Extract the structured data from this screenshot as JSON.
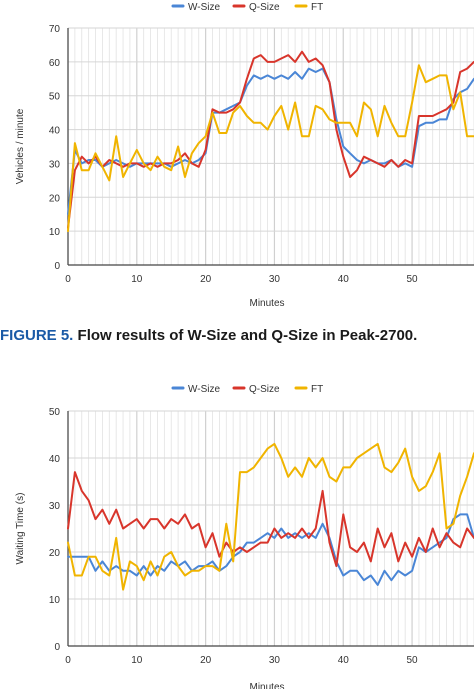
{
  "figure_caption": {
    "label": "FIGURE 5.",
    "text": " Flow results of W-Size and Q-Size in Peak-2700."
  },
  "colors": {
    "w_size": "#4a86d6",
    "q_size": "#d8352b",
    "ft": "#f0b400",
    "grid": "#e2e2e2",
    "axis": "#333333"
  },
  "chart_data": [
    {
      "type": "line",
      "title": "",
      "xlabel": "Minutes",
      "ylabel": "Vehicles / minute",
      "xlim": [
        0,
        59
      ],
      "ylim": [
        0,
        70
      ],
      "xticks": [
        0,
        10,
        20,
        30,
        40,
        50
      ],
      "yticks": [
        0,
        10,
        20,
        30,
        40,
        50,
        60,
        70
      ],
      "grid": true,
      "legend_position": "top",
      "series": [
        {
          "name": "W-Size",
          "color": "#4a86d6",
          "x": [
            0,
            1,
            2,
            3,
            4,
            5,
            6,
            7,
            8,
            9,
            10,
            11,
            12,
            13,
            14,
            15,
            16,
            17,
            18,
            19,
            20,
            21,
            22,
            23,
            24,
            25,
            26,
            27,
            28,
            29,
            30,
            31,
            32,
            33,
            34,
            35,
            36,
            37,
            38,
            39,
            40,
            41,
            42,
            43,
            44,
            45,
            46,
            47,
            48,
            49,
            50,
            51,
            52,
            53,
            54,
            55,
            56,
            57,
            58,
            59
          ],
          "y": [
            15,
            34,
            30,
            31,
            31,
            29,
            30,
            31,
            30,
            29,
            30,
            30,
            30,
            30,
            30,
            29,
            30,
            31,
            30,
            31,
            33,
            45,
            45,
            46,
            47,
            48,
            53,
            56,
            55,
            56,
            55,
            56,
            55,
            57,
            55,
            58,
            57,
            58,
            54,
            43,
            35,
            33,
            31,
            30,
            31,
            30,
            30,
            31,
            29,
            30,
            29,
            41,
            42,
            42,
            43,
            43,
            49,
            51,
            52,
            55
          ]
        },
        {
          "name": "Q-Size",
          "color": "#d8352b",
          "x": [
            0,
            1,
            2,
            3,
            4,
            5,
            6,
            7,
            8,
            9,
            10,
            11,
            12,
            13,
            14,
            15,
            16,
            17,
            18,
            19,
            20,
            21,
            22,
            23,
            24,
            25,
            26,
            27,
            28,
            29,
            30,
            31,
            32,
            33,
            34,
            35,
            36,
            37,
            38,
            39,
            40,
            41,
            42,
            43,
            44,
            45,
            46,
            47,
            48,
            49,
            50,
            51,
            52,
            53,
            54,
            55,
            56,
            57,
            58,
            59
          ],
          "y": [
            11,
            28,
            32,
            30,
            32,
            29,
            31,
            30,
            29,
            30,
            30,
            29,
            30,
            29,
            30,
            30,
            31,
            33,
            30,
            29,
            34,
            46,
            45,
            45,
            46,
            48,
            55,
            61,
            62,
            60,
            60,
            61,
            62,
            60,
            63,
            60,
            61,
            59,
            54,
            40,
            32,
            26,
            28,
            32,
            31,
            30,
            29,
            31,
            29,
            31,
            30,
            44,
            44,
            44,
            45,
            46,
            48,
            57,
            58,
            60
          ]
        },
        {
          "name": "FT",
          "color": "#f0b400",
          "x": [
            0,
            1,
            2,
            3,
            4,
            5,
            6,
            7,
            8,
            9,
            10,
            11,
            12,
            13,
            14,
            15,
            16,
            17,
            18,
            19,
            20,
            21,
            22,
            23,
            24,
            25,
            26,
            27,
            28,
            29,
            30,
            31,
            32,
            33,
            34,
            35,
            36,
            37,
            38,
            39,
            40,
            41,
            42,
            43,
            44,
            45,
            46,
            47,
            48,
            49,
            50,
            51,
            52,
            53,
            54,
            55,
            56,
            57,
            58,
            59
          ],
          "y": [
            10,
            36,
            28,
            28,
            33,
            29,
            25,
            38,
            26,
            30,
            34,
            30,
            28,
            32,
            29,
            28,
            35,
            26,
            33,
            36,
            38,
            45,
            39,
            39,
            45,
            47,
            44,
            42,
            42,
            40,
            44,
            47,
            40,
            48,
            38,
            38,
            47,
            46,
            43,
            42,
            42,
            42,
            38,
            48,
            46,
            38,
            47,
            42,
            38,
            38,
            48,
            59,
            54,
            55,
            56,
            56,
            46,
            51,
            38,
            38
          ]
        }
      ]
    },
    {
      "type": "line",
      "title": "",
      "xlabel": "Minutes",
      "ylabel": "Waiting Time (s)",
      "xlim": [
        0,
        59
      ],
      "ylim": [
        0,
        50
      ],
      "xticks": [
        0,
        10,
        20,
        30,
        40,
        50
      ],
      "yticks": [
        0,
        10,
        20,
        30,
        40,
        50
      ],
      "grid": true,
      "legend_position": "top",
      "series": [
        {
          "name": "W-Size",
          "color": "#4a86d6",
          "x": [
            0,
            1,
            2,
            3,
            4,
            5,
            6,
            7,
            8,
            9,
            10,
            11,
            12,
            13,
            14,
            15,
            16,
            17,
            18,
            19,
            20,
            21,
            22,
            23,
            24,
            25,
            26,
            27,
            28,
            29,
            30,
            31,
            32,
            33,
            34,
            35,
            36,
            37,
            38,
            39,
            40,
            41,
            42,
            43,
            44,
            45,
            46,
            47,
            48,
            49,
            50,
            51,
            52,
            53,
            54,
            55,
            56,
            57,
            58,
            59
          ],
          "y": [
            19,
            19,
            19,
            19,
            16,
            18,
            16,
            17,
            16,
            16,
            15,
            17,
            15,
            17,
            16,
            18,
            17,
            18,
            16,
            17,
            17,
            18,
            16,
            17,
            19,
            20,
            22,
            22,
            23,
            24,
            23,
            25,
            23,
            24,
            23,
            24,
            23,
            26,
            23,
            18,
            15,
            16,
            16,
            14,
            15,
            13,
            16,
            14,
            16,
            15,
            16,
            21,
            20,
            21,
            22,
            23,
            27,
            28,
            28,
            23
          ]
        },
        {
          "name": "Q-Size",
          "color": "#d8352b",
          "x": [
            0,
            1,
            2,
            3,
            4,
            5,
            6,
            7,
            8,
            9,
            10,
            11,
            12,
            13,
            14,
            15,
            16,
            17,
            18,
            19,
            20,
            21,
            22,
            23,
            24,
            25,
            26,
            27,
            28,
            29,
            30,
            31,
            32,
            33,
            34,
            35,
            36,
            37,
            38,
            39,
            40,
            41,
            42,
            43,
            44,
            45,
            46,
            47,
            48,
            49,
            50,
            51,
            52,
            53,
            54,
            55,
            56,
            57,
            58,
            59
          ],
          "y": [
            25,
            37,
            33,
            31,
            27,
            29,
            26,
            29,
            25,
            26,
            27,
            25,
            27,
            27,
            25,
            27,
            26,
            28,
            25,
            26,
            21,
            24,
            19,
            22,
            20,
            21,
            20,
            21,
            22,
            22,
            25,
            23,
            24,
            23,
            25,
            23,
            25,
            33,
            22,
            17,
            28,
            21,
            20,
            22,
            18,
            25,
            21,
            24,
            18,
            22,
            19,
            23,
            20,
            25,
            21,
            24,
            22,
            21,
            25,
            23
          ]
        },
        {
          "name": "FT",
          "color": "#f0b400",
          "x": [
            0,
            1,
            2,
            3,
            4,
            5,
            6,
            7,
            8,
            9,
            10,
            11,
            12,
            13,
            14,
            15,
            16,
            17,
            18,
            19,
            20,
            21,
            22,
            23,
            24,
            25,
            26,
            27,
            28,
            29,
            30,
            31,
            32,
            33,
            34,
            35,
            36,
            37,
            38,
            39,
            40,
            41,
            42,
            43,
            44,
            45,
            46,
            47,
            48,
            49,
            50,
            51,
            52,
            53,
            54,
            55,
            56,
            57,
            58,
            59
          ],
          "y": [
            22,
            15,
            15,
            19,
            19,
            16,
            15,
            23,
            12,
            18,
            17,
            14,
            18,
            15,
            19,
            20,
            17,
            15,
            16,
            16,
            17,
            17,
            16,
            26,
            18,
            37,
            37,
            38,
            40,
            42,
            43,
            40,
            36,
            38,
            36,
            40,
            38,
            40,
            36,
            35,
            38,
            38,
            40,
            41,
            42,
            43,
            38,
            37,
            39,
            42,
            36,
            33,
            34,
            37,
            41,
            25,
            26,
            32,
            36,
            41
          ]
        }
      ]
    }
  ]
}
